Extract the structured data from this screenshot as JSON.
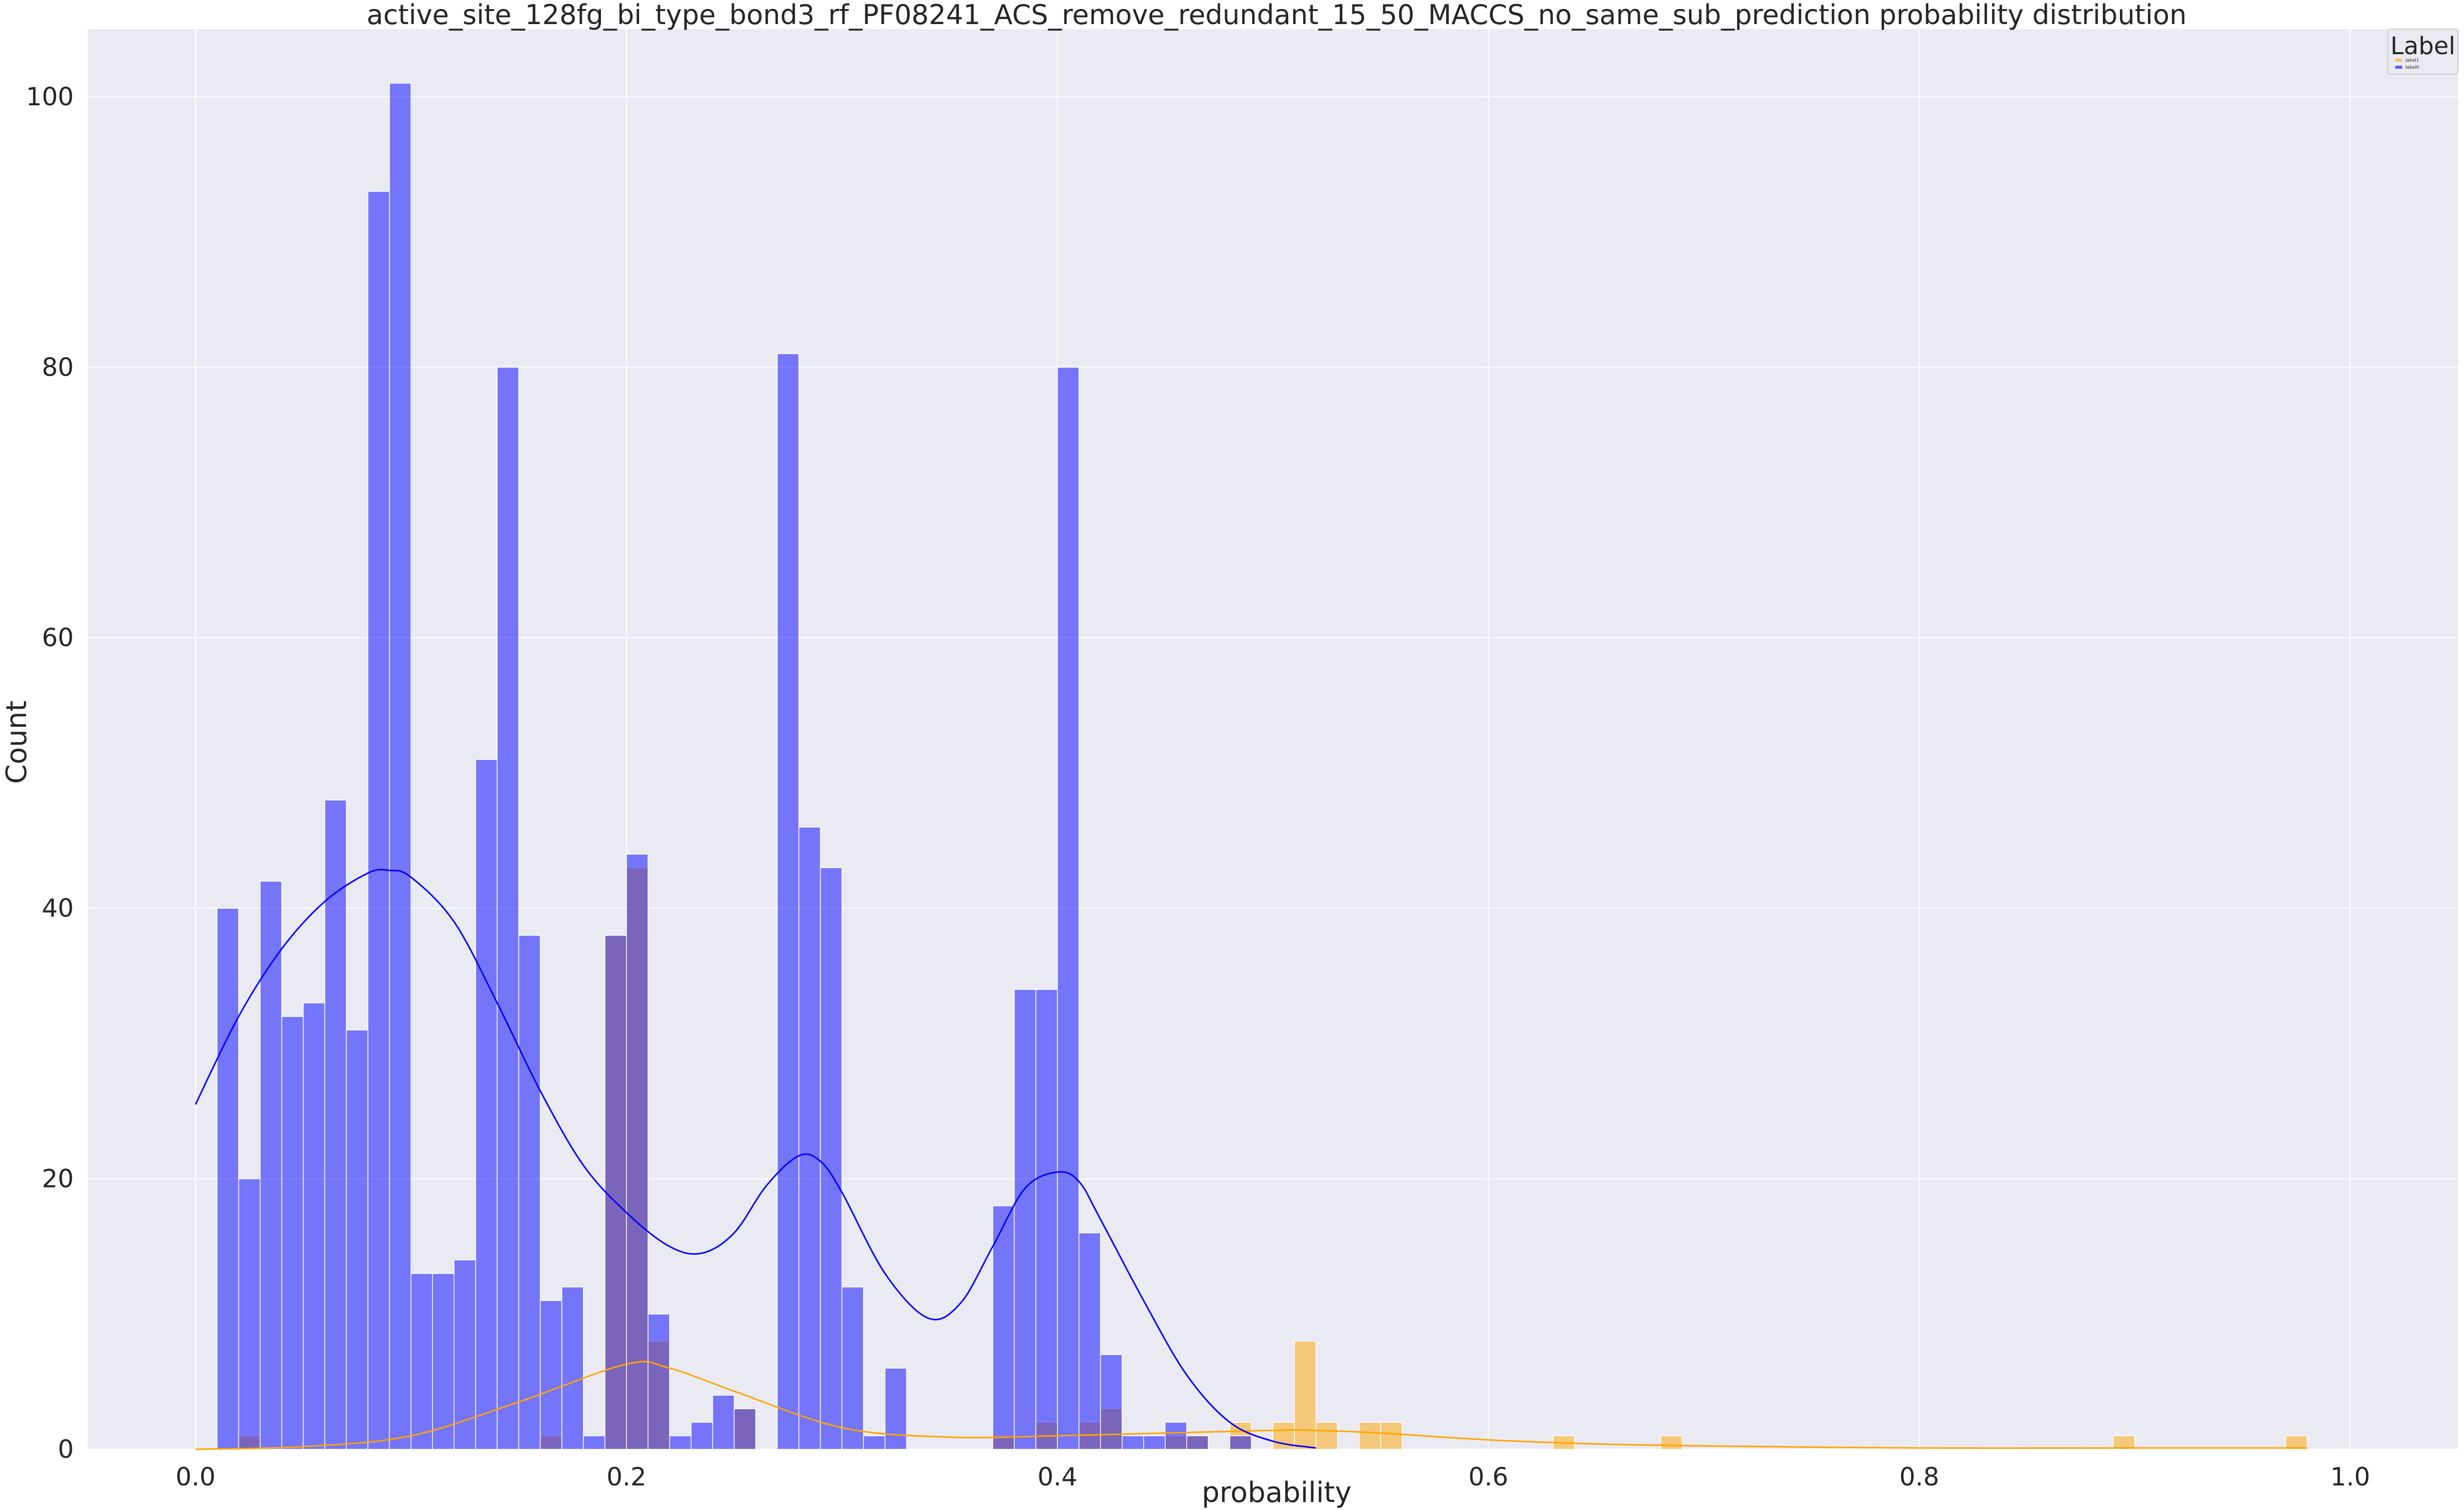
{
  "chart_data": {
    "type": "histogram",
    "title": "active_site_128fg_bi_type_bond3_rf_PF08241_ACS_remove_redundant_15_50_MACCS_no_same_sub_prediction probability distribution",
    "xlabel": "probability",
    "ylabel": "Count",
    "xlim": [
      -0.05,
      1.05
    ],
    "ylim": [
      0,
      105
    ],
    "x_ticks": [
      0.0,
      0.2,
      0.4,
      0.6,
      0.8,
      1.0
    ],
    "x_tick_labels": [
      "0.0",
      "0.2",
      "0.4",
      "0.6",
      "0.8",
      "1.0"
    ],
    "y_ticks": [
      0,
      20,
      40,
      60,
      80,
      100
    ],
    "y_tick_labels": [
      "0",
      "20",
      "40",
      "60",
      "80",
      "100"
    ],
    "grid": true,
    "legend": {
      "title": "Label",
      "placement": "top-right"
    },
    "bin_width": 0.01,
    "series": [
      {
        "name": "label1",
        "color": "#FFA500",
        "bins": [
          {
            "x": 0.025,
            "count": 1
          },
          {
            "x": 0.165,
            "count": 1
          },
          {
            "x": 0.195,
            "count": 38
          },
          {
            "x": 0.205,
            "count": 43
          },
          {
            "x": 0.215,
            "count": 8
          },
          {
            "x": 0.255,
            "count": 3
          },
          {
            "x": 0.375,
            "count": 1
          },
          {
            "x": 0.395,
            "count": 2
          },
          {
            "x": 0.415,
            "count": 2
          },
          {
            "x": 0.425,
            "count": 3
          },
          {
            "x": 0.455,
            "count": 1
          },
          {
            "x": 0.465,
            "count": 1
          },
          {
            "x": 0.485,
            "count": 2
          },
          {
            "x": 0.505,
            "count": 2
          },
          {
            "x": 0.515,
            "count": 8
          },
          {
            "x": 0.525,
            "count": 2
          },
          {
            "x": 0.545,
            "count": 2
          },
          {
            "x": 0.555,
            "count": 2
          },
          {
            "x": 0.635,
            "count": 1
          },
          {
            "x": 0.685,
            "count": 1
          },
          {
            "x": 0.895,
            "count": 1
          },
          {
            "x": 0.975,
            "count": 1
          }
        ],
        "kde": [
          [
            0.0,
            0.0
          ],
          [
            0.05,
            0.2
          ],
          [
            0.1,
            1.0
          ],
          [
            0.15,
            3.5
          ],
          [
            0.2,
            6.3
          ],
          [
            0.22,
            6.0
          ],
          [
            0.25,
            4.3
          ],
          [
            0.3,
            1.6
          ],
          [
            0.35,
            0.9
          ],
          [
            0.4,
            1.0
          ],
          [
            0.45,
            1.2
          ],
          [
            0.5,
            1.4
          ],
          [
            0.52,
            1.4
          ],
          [
            0.55,
            1.2
          ],
          [
            0.6,
            0.7
          ],
          [
            0.65,
            0.4
          ],
          [
            0.7,
            0.25
          ],
          [
            0.8,
            0.1
          ],
          [
            0.9,
            0.1
          ],
          [
            0.98,
            0.1
          ]
        ]
      },
      {
        "name": "label0",
        "color": "#0000FF",
        "bins": [
          {
            "x": 0.015,
            "count": 40
          },
          {
            "x": 0.025,
            "count": 20
          },
          {
            "x": 0.035,
            "count": 42
          },
          {
            "x": 0.045,
            "count": 32
          },
          {
            "x": 0.055,
            "count": 33
          },
          {
            "x": 0.065,
            "count": 48
          },
          {
            "x": 0.075,
            "count": 31
          },
          {
            "x": 0.085,
            "count": 93
          },
          {
            "x": 0.095,
            "count": 101
          },
          {
            "x": 0.105,
            "count": 13
          },
          {
            "x": 0.115,
            "count": 13
          },
          {
            "x": 0.125,
            "count": 14
          },
          {
            "x": 0.135,
            "count": 51
          },
          {
            "x": 0.145,
            "count": 80
          },
          {
            "x": 0.155,
            "count": 38
          },
          {
            "x": 0.165,
            "count": 11
          },
          {
            "x": 0.175,
            "count": 12
          },
          {
            "x": 0.185,
            "count": 1
          },
          {
            "x": 0.195,
            "count": 38
          },
          {
            "x": 0.205,
            "count": 44
          },
          {
            "x": 0.215,
            "count": 10
          },
          {
            "x": 0.225,
            "count": 1
          },
          {
            "x": 0.235,
            "count": 2
          },
          {
            "x": 0.245,
            "count": 4
          },
          {
            "x": 0.255,
            "count": 3
          },
          {
            "x": 0.275,
            "count": 81
          },
          {
            "x": 0.285,
            "count": 46
          },
          {
            "x": 0.295,
            "count": 43
          },
          {
            "x": 0.305,
            "count": 12
          },
          {
            "x": 0.315,
            "count": 1
          },
          {
            "x": 0.325,
            "count": 6
          },
          {
            "x": 0.375,
            "count": 18
          },
          {
            "x": 0.385,
            "count": 34
          },
          {
            "x": 0.395,
            "count": 34
          },
          {
            "x": 0.405,
            "count": 80
          },
          {
            "x": 0.415,
            "count": 16
          },
          {
            "x": 0.425,
            "count": 7
          },
          {
            "x": 0.435,
            "count": 1
          },
          {
            "x": 0.445,
            "count": 1
          },
          {
            "x": 0.455,
            "count": 2
          },
          {
            "x": 0.465,
            "count": 1
          },
          {
            "x": 0.485,
            "count": 1
          }
        ],
        "kde": [
          [
            0.0,
            25.5
          ],
          [
            0.02,
            32.0
          ],
          [
            0.04,
            37.0
          ],
          [
            0.06,
            40.5
          ],
          [
            0.08,
            42.6
          ],
          [
            0.09,
            42.8
          ],
          [
            0.1,
            42.3
          ],
          [
            0.12,
            39.0
          ],
          [
            0.14,
            33.0
          ],
          [
            0.16,
            26.5
          ],
          [
            0.18,
            21.0
          ],
          [
            0.2,
            17.5
          ],
          [
            0.22,
            15.0
          ],
          [
            0.235,
            14.5
          ],
          [
            0.25,
            16.0
          ],
          [
            0.265,
            19.5
          ],
          [
            0.28,
            21.7
          ],
          [
            0.29,
            21.3
          ],
          [
            0.3,
            19.0
          ],
          [
            0.32,
            13.0
          ],
          [
            0.34,
            9.7
          ],
          [
            0.355,
            10.8
          ],
          [
            0.37,
            15.0
          ],
          [
            0.385,
            19.3
          ],
          [
            0.4,
            20.5
          ],
          [
            0.41,
            19.8
          ],
          [
            0.42,
            17.0
          ],
          [
            0.44,
            11.0
          ],
          [
            0.46,
            5.5
          ],
          [
            0.48,
            2.0
          ],
          [
            0.5,
            0.6
          ],
          [
            0.52,
            0.1
          ]
        ]
      }
    ]
  }
}
